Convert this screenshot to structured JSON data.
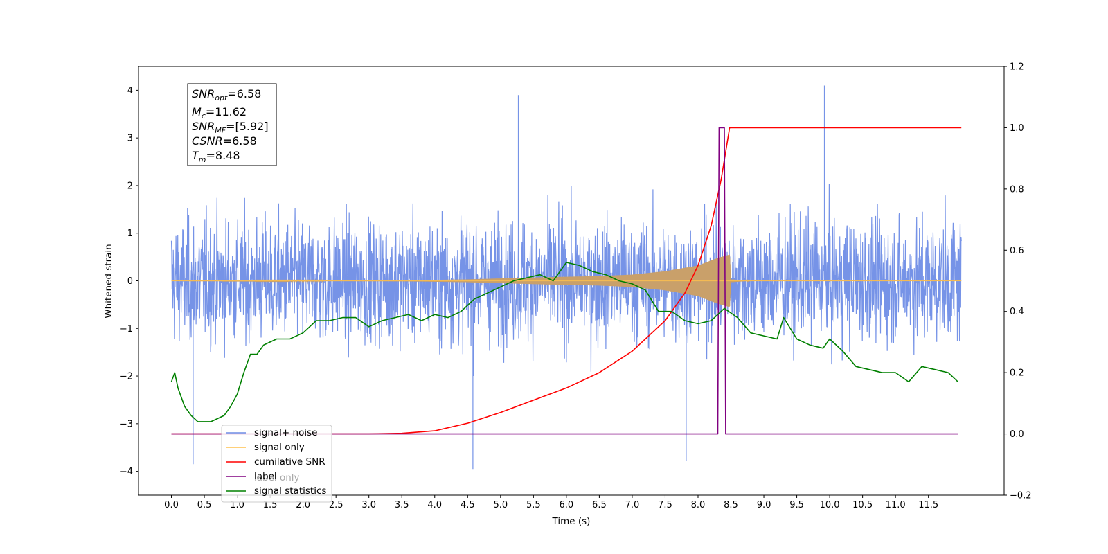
{
  "chart_data": {
    "type": "line",
    "xlabel": "Time (s)",
    "ylabel_left": "Whitened strain",
    "ylabel_right": "",
    "xlim": [
      -0.5,
      12.65
    ],
    "ylim_left": [
      -4.5,
      4.5
    ],
    "ylim_right": [
      -0.2,
      1.2
    ],
    "x_ticks": [
      0.0,
      0.5,
      1.0,
      1.5,
      2.0,
      2.5,
      3.0,
      3.5,
      4.0,
      4.5,
      5.0,
      5.5,
      6.0,
      6.5,
      7.0,
      7.5,
      8.0,
      8.5,
      9.0,
      9.5,
      10.0,
      10.5,
      11.0,
      11.5
    ],
    "x_tick_labels": [
      "0.0",
      "0.5",
      "1.0",
      "1.5",
      "2.0",
      "2.5",
      "3.0",
      "3.5",
      "4.0",
      "4.5",
      "5.0",
      "5.5",
      "6.0",
      "6.5",
      "7.0",
      "7.5",
      "8.0",
      "8.5",
      "9.0",
      "9.5",
      "10.0",
      "10.5",
      "11.0",
      "11.5"
    ],
    "y_left_ticks": [
      -4,
      -3,
      -2,
      -1,
      0,
      1,
      2,
      3,
      4
    ],
    "y_left_tick_labels": [
      "−4",
      "−3",
      "−2",
      "−1",
      "0",
      "1",
      "2",
      "3",
      "4"
    ],
    "y_right_ticks": [
      -0.2,
      0.0,
      0.2,
      0.4,
      0.6,
      0.8,
      1.0,
      1.2
    ],
    "y_right_tick_labels": [
      "−0.2",
      "0.0",
      "0.2",
      "0.4",
      "0.6",
      "0.8",
      "1.0",
      "1.2"
    ],
    "grid": false,
    "legend_placement": "lower-left",
    "legend": [
      {
        "label": "signal+ noise",
        "color": "#6f8de6"
      },
      {
        "label": "signal only",
        "color": "#ffc04d"
      },
      {
        "label": "cumilative SNR",
        "color": "#ff0000"
      },
      {
        "label": "label",
        "color": "#800080"
      },
      {
        "label": "signal statistics",
        "color": "#008000"
      }
    ],
    "legend_hidden_label": "label only",
    "info_box": {
      "snr_opt": "=6.58",
      "mc": "=11.62",
      "snr_mf": "=[5.92]",
      "csnr": "=6.58",
      "tm": "=8.48"
    },
    "series": [
      {
        "name": "signal+ noise",
        "axis": "left",
        "color": "#6f8de6",
        "x_range": [
          0.0,
          12.0
        ],
        "typical_amplitude": 2.3,
        "notable_peaks": [
          {
            "x": 5.27,
            "y": 3.9
          },
          {
            "x": 9.92,
            "y": 4.1
          },
          {
            "x": 4.58,
            "y": -3.95
          },
          {
            "x": 7.82,
            "y": -3.78
          },
          {
            "x": 0.33,
            "y": -3.85
          }
        ]
      },
      {
        "name": "signal only",
        "axis": "left",
        "color": "#ffc04d",
        "envelope": [
          {
            "x": 0.0,
            "y": 0.0
          },
          {
            "x": 3.5,
            "y": 0.01
          },
          {
            "x": 4.5,
            "y": 0.03
          },
          {
            "x": 5.5,
            "y": 0.07
          },
          {
            "x": 6.5,
            "y": 0.1
          },
          {
            "x": 7.0,
            "y": 0.13
          },
          {
            "x": 7.5,
            "y": 0.2
          },
          {
            "x": 8.0,
            "y": 0.32
          },
          {
            "x": 8.3,
            "y": 0.48
          },
          {
            "x": 8.48,
            "y": 0.55
          },
          {
            "x": 8.5,
            "y": 0.03
          },
          {
            "x": 8.8,
            "y": 0.0
          },
          {
            "x": 12.0,
            "y": 0.0
          }
        ]
      },
      {
        "name": "cumilative SNR",
        "axis": "right",
        "color": "#ff0000",
        "x": [
          0.0,
          3.0,
          3.5,
          4.0,
          4.5,
          5.0,
          5.5,
          6.0,
          6.5,
          7.0,
          7.5,
          7.8,
          8.0,
          8.2,
          8.35,
          8.48,
          8.5,
          12.0
        ],
        "y": [
          0.0,
          0.0,
          0.002,
          0.01,
          0.035,
          0.07,
          0.11,
          0.15,
          0.2,
          0.27,
          0.37,
          0.46,
          0.55,
          0.68,
          0.83,
          1.0,
          1.0,
          1.0
        ]
      },
      {
        "name": "label",
        "axis": "right",
        "color": "#800080",
        "x": [
          0.0,
          8.3,
          8.32,
          8.4,
          8.42,
          8.48,
          8.5,
          11.95
        ],
        "y": [
          0.0,
          0.0,
          1.0,
          1.0,
          0.0,
          0.0,
          0.0,
          0.0
        ]
      },
      {
        "name": "signal statistics",
        "axis": "right",
        "color": "#008000",
        "x": [
          0.0,
          0.05,
          0.1,
          0.2,
          0.3,
          0.4,
          0.5,
          0.6,
          0.7,
          0.8,
          0.9,
          1.0,
          1.1,
          1.2,
          1.3,
          1.4,
          1.5,
          1.6,
          1.8,
          2.0,
          2.2,
          2.4,
          2.6,
          2.8,
          3.0,
          3.2,
          3.4,
          3.6,
          3.8,
          4.0,
          4.2,
          4.4,
          4.6,
          4.8,
          5.0,
          5.2,
          5.4,
          5.6,
          5.8,
          6.0,
          6.2,
          6.4,
          6.6,
          6.8,
          7.0,
          7.2,
          7.4,
          7.6,
          7.8,
          8.0,
          8.2,
          8.4,
          8.6,
          8.8,
          9.0,
          9.2,
          9.3,
          9.5,
          9.7,
          9.9,
          10.0,
          10.2,
          10.4,
          10.6,
          10.8,
          11.0,
          11.2,
          11.4,
          11.6,
          11.8,
          11.95
        ],
        "y": [
          0.17,
          0.2,
          0.15,
          0.09,
          0.06,
          0.04,
          0.04,
          0.04,
          0.05,
          0.06,
          0.09,
          0.13,
          0.2,
          0.26,
          0.26,
          0.29,
          0.3,
          0.31,
          0.31,
          0.33,
          0.37,
          0.37,
          0.38,
          0.38,
          0.35,
          0.37,
          0.38,
          0.39,
          0.37,
          0.39,
          0.38,
          0.4,
          0.44,
          0.46,
          0.48,
          0.5,
          0.51,
          0.52,
          0.5,
          0.56,
          0.55,
          0.53,
          0.52,
          0.5,
          0.49,
          0.47,
          0.4,
          0.4,
          0.37,
          0.36,
          0.37,
          0.41,
          0.38,
          0.33,
          0.32,
          0.31,
          0.38,
          0.31,
          0.29,
          0.28,
          0.31,
          0.27,
          0.22,
          0.21,
          0.2,
          0.2,
          0.17,
          0.22,
          0.21,
          0.2,
          0.17
        ]
      }
    ]
  }
}
